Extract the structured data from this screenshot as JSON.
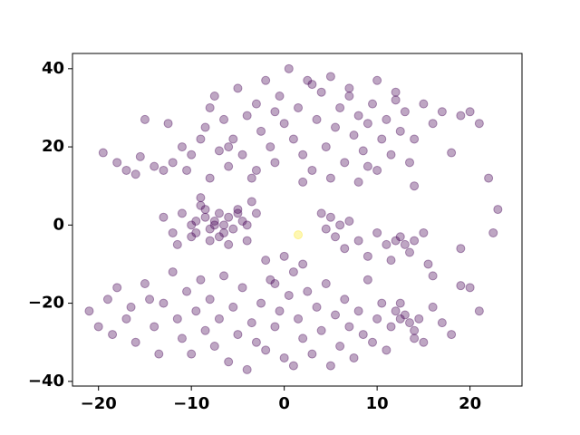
{
  "chart_data": {
    "type": "scatter",
    "xlim": [
      -22.8,
      25.6
    ],
    "ylim": [
      -41.2,
      43.9
    ],
    "xticks": [
      {
        "value": -20,
        "label": "−20"
      },
      {
        "value": -10,
        "label": "−10"
      },
      0,
      10,
      20
    ],
    "yticks": [
      {
        "value": -40,
        "label": "−40"
      },
      {
        "value": -20,
        "label": "−20"
      },
      0,
      20,
      40
    ],
    "series": [
      {
        "color": "#440154",
        "x": [
          -19.5,
          -18,
          -17,
          -16,
          -15.5,
          -14,
          -13,
          -12,
          -11,
          -10,
          -9,
          -8.5,
          -8,
          -7.5,
          -7,
          -6.5,
          -6,
          -5.5,
          -5,
          -4.5,
          -4,
          -3.5,
          -3,
          -2.5,
          -2,
          -1.5,
          -1,
          -0.5,
          0,
          0.5,
          1,
          1.5,
          2,
          2.5,
          3,
          3.5,
          4,
          4.5,
          5,
          5.5,
          6,
          6.5,
          7,
          7.5,
          8,
          8.5,
          9,
          9.5,
          10,
          10.5,
          11,
          11.5,
          12,
          12.5,
          13,
          13.5,
          14,
          15,
          16,
          17,
          18,
          19,
          20,
          21,
          -12.5,
          -10.5,
          -8,
          -6,
          -3,
          2,
          5,
          8,
          10,
          12,
          14,
          -15,
          -1,
          3,
          7,
          9,
          -11,
          -10,
          -9.5,
          -9,
          -8.5,
          -8,
          -7.5,
          -7,
          -6.5,
          -6,
          -5.5,
          -5,
          -4.5,
          -4,
          -3.5,
          -12,
          -13,
          -11.5,
          -10,
          -9,
          -8,
          -7,
          -6,
          -5,
          -8.5,
          -7.5,
          -6.5,
          -9.5,
          -4,
          -3,
          4,
          4.5,
          5,
          5.5,
          6,
          6.5,
          7,
          8,
          9,
          10,
          11,
          11.5,
          12,
          12.5,
          13,
          13.5,
          14,
          15,
          15.5,
          16,
          0,
          1,
          2,
          -2,
          -1,
          -21,
          -20,
          -19,
          -18.5,
          -18,
          -17,
          -16.5,
          -16,
          -15,
          -14.5,
          -14,
          -13.5,
          -13,
          -12,
          -11.5,
          -11,
          -10.5,
          -10,
          -9.5,
          -9,
          -8.5,
          -8,
          -7.5,
          -7,
          -6.5,
          -6,
          -5.5,
          -5,
          -4.5,
          -4,
          -3.5,
          -3,
          -2.5,
          -2,
          -1.5,
          -1,
          -0.5,
          0,
          0.5,
          1,
          1.5,
          2,
          2.5,
          3,
          3.5,
          4,
          4.5,
          5,
          5.5,
          6,
          6.5,
          7,
          7.5,
          8,
          8.5,
          9,
          9.5,
          10,
          10.5,
          11,
          11.5,
          12,
          12.5,
          13,
          13.5,
          14,
          14.5,
          15,
          16,
          17,
          18,
          19,
          20,
          21,
          22,
          23,
          22.5,
          19,
          12.5,
          14
        ],
        "values": [
          18.5,
          16,
          14,
          13,
          17.5,
          15,
          14,
          16,
          20,
          18,
          22,
          25,
          30,
          33,
          19,
          27,
          15,
          22,
          35,
          18,
          28,
          12,
          31,
          24,
          37,
          20,
          16,
          33,
          26,
          40,
          22,
          30,
          18,
          37,
          14,
          27,
          34,
          20,
          38,
          25,
          30,
          16,
          33,
          23,
          28,
          19,
          26,
          31,
          14,
          22,
          27,
          18,
          32,
          24,
          29,
          16,
          22,
          31,
          26,
          29,
          18.5,
          28,
          29,
          26,
          26,
          14,
          12,
          20,
          14,
          11,
          12,
          11,
          37,
          34,
          10,
          27,
          29,
          36,
          35,
          15,
          3,
          0,
          -2,
          5,
          2,
          -1,
          1,
          3,
          0,
          2,
          -1,
          4,
          1,
          0,
          6,
          -2,
          2,
          -5,
          -3,
          7,
          -4,
          -3,
          -5,
          3,
          4,
          0,
          -2,
          1,
          -4,
          3,
          3,
          -1,
          2,
          -3,
          0,
          -6,
          1,
          -4,
          -8,
          -2,
          -5,
          -9,
          -4,
          -3,
          -5,
          -7,
          -4,
          -2,
          -10,
          -13,
          -8,
          -12,
          -10,
          -9,
          -15,
          -22,
          -26,
          -19,
          -28,
          -16,
          -24,
          -21,
          -30,
          -15,
          -19,
          -26,
          -33,
          -20,
          -12,
          -24,
          -29,
          -17,
          -33,
          -22,
          -14,
          -27,
          -19,
          -31,
          -24,
          -13,
          -35,
          -21,
          -28,
          -16,
          -37,
          -25,
          -30,
          -20,
          -32,
          -14,
          -26,
          -22,
          -34,
          -18,
          -36,
          -24,
          -29,
          -17,
          -33,
          -21,
          -27,
          -15,
          -36,
          -23,
          -31,
          -19,
          -26,
          -34,
          -22,
          -28,
          -14,
          -30,
          -24,
          -20,
          -32,
          -26,
          -22,
          -24,
          -23,
          -25,
          -27,
          -24,
          -30,
          -21,
          -25,
          -28,
          -15.5,
          -16,
          -22,
          12,
          4,
          -2,
          -6,
          -20,
          -29
        ]
      },
      {
        "color": "#fde725",
        "x": [
          1.5
        ],
        "values": [
          -2.5
        ]
      }
    ]
  }
}
